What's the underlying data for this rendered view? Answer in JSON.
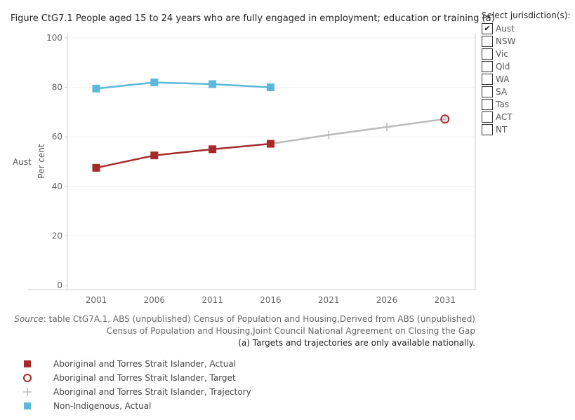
{
  "title": "Figure CtG7.1 People aged 15 to 24 years who are fully engaged in employment; education or training (a)",
  "jurisdiction": {
    "label": "Select jurisdiction(s):",
    "options": [
      {
        "label": "Aust",
        "checked": true
      },
      {
        "label": "NSW",
        "checked": false
      },
      {
        "label": "Vic",
        "checked": false
      },
      {
        "label": "Qld",
        "checked": false
      },
      {
        "label": "WA",
        "checked": false
      },
      {
        "label": "SA",
        "checked": false
      },
      {
        "label": "Tas",
        "checked": false
      },
      {
        "label": "ACT",
        "checked": false
      },
      {
        "label": "NT",
        "checked": false
      }
    ],
    "check_glyph": "✔"
  },
  "chart_data": {
    "type": "line",
    "row_label": "Aust",
    "ylabel": "Per cent",
    "ylim": [
      0,
      100
    ],
    "yticks": [
      0,
      20,
      40,
      60,
      80,
      100
    ],
    "categories": [
      "2001",
      "2006",
      "2011",
      "2016",
      "2021",
      "2026",
      "2031"
    ],
    "series": [
      {
        "name": "Aboriginal and Torres Strait Islander, Actual",
        "marker": "square",
        "color": "#a52a2a",
        "points": [
          {
            "x": "2001",
            "y": 47.5
          },
          {
            "x": "2006",
            "y": 52.5
          },
          {
            "x": "2011",
            "y": 55.0
          },
          {
            "x": "2016",
            "y": 57.2
          }
        ]
      },
      {
        "name": "Aboriginal and Torres Strait Islander, Trajectory",
        "marker": "plus",
        "color": "#bbbbbb",
        "points": [
          {
            "x": "2016",
            "y": 57.2
          },
          {
            "x": "2021",
            "y": 60.8
          },
          {
            "x": "2026",
            "y": 64.0
          },
          {
            "x": "2031",
            "y": 67.2
          }
        ]
      },
      {
        "name": "Aboriginal and Torres Strait Islander, Target",
        "marker": "circle",
        "color": "#a52a2a",
        "points": [
          {
            "x": "2031",
            "y": 67.2
          }
        ]
      },
      {
        "name": "Non-Indigenous, Actual",
        "marker": "square",
        "color": "#5bb8dc",
        "points": [
          {
            "x": "2001",
            "y": 79.5
          },
          {
            "x": "2006",
            "y": 82.0
          },
          {
            "x": "2011",
            "y": 81.3
          },
          {
            "x": "2016",
            "y": 80.0
          }
        ]
      }
    ]
  },
  "source": {
    "prefix": "Source",
    "text": ": table CtG7A.1, ABS (unpublished) Census of Population and Housing,Derived from ABS (unpublished) Census of Population and Housing,Joint Council National Agreement on Closing the Gap"
  },
  "note": "(a) Targets and trajectories are only available nationally.",
  "legend": [
    {
      "label": "Aboriginal and Torres Strait Islander, Actual",
      "marker": "square",
      "color": "#a52a2a"
    },
    {
      "label": "Aboriginal and Torres Strait Islander, Target",
      "marker": "circle",
      "color": "#a52a2a"
    },
    {
      "label": "Aboriginal and Torres Strait Islander, Trajectory",
      "marker": "plus",
      "color": "#bbbbbb"
    },
    {
      "label": "Non-Indigenous, Actual",
      "marker": "square",
      "color": "#5bb8dc"
    }
  ]
}
